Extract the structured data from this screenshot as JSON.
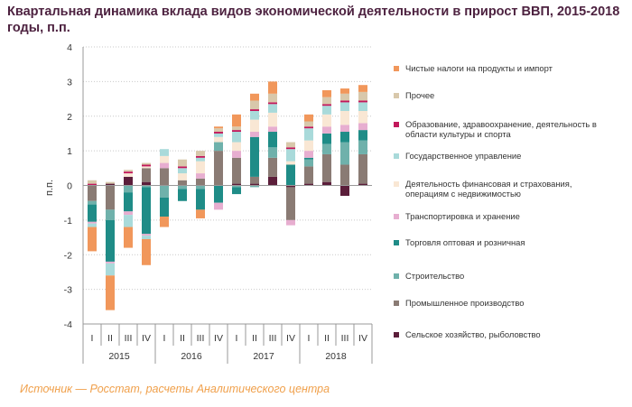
{
  "title": "Квартальная динамика вклада видов экономической деятельности в прирост ВВП, 2015-2018 годы, п.п.",
  "source": "Источник — Росстат, расчеты Аналитического центра",
  "chart_data": {
    "type": "stacked_bar",
    "title": "Квартальная динамика вклада видов экономической деятельности в прирост ВВП, 2015-2018 годы, п.п.",
    "ylabel": "п.п.",
    "ylim": [
      -4,
      4
    ],
    "yticks": [
      "-4",
      "-3",
      "-2",
      "-1",
      "0",
      "1",
      "2",
      "3",
      "4"
    ],
    "categories": [
      "I",
      "II",
      "III",
      "IV",
      "I",
      "II",
      "III",
      "IV",
      "I",
      "II",
      "III",
      "IV",
      "I",
      "II",
      "III",
      "IV"
    ],
    "years": [
      "2015",
      "2016",
      "2017",
      "2018"
    ],
    "series": [
      {
        "name": "Сельское хозяйство, рыболовство",
        "color": "#5b1e3a",
        "values": [
          0.0,
          0.05,
          0.25,
          0.1,
          0.0,
          0.0,
          0.0,
          0.0,
          0.05,
          0.05,
          0.25,
          -0.05,
          0.05,
          0.1,
          -0.3,
          0.05
        ]
      },
      {
        "name": "Промышленное производство",
        "color": "#8a7b74",
        "values": [
          -0.45,
          -0.7,
          0.0,
          0.4,
          0.5,
          0.15,
          0.2,
          1.0,
          0.75,
          0.2,
          0.55,
          -0.95,
          0.5,
          0.8,
          0.6,
          0.85
        ]
      },
      {
        "name": "Строительство",
        "color": "#6fb1ab",
        "values": [
          -0.1,
          -0.3,
          -0.2,
          -0.05,
          -0.35,
          -0.1,
          -0.1,
          0.25,
          -0.05,
          -0.05,
          0.3,
          0.0,
          0.2,
          0.3,
          0.65,
          0.4
        ]
      },
      {
        "name": "Торговля оптовая и розничная",
        "color": "#1f8c87",
        "values": [
          -0.5,
          -1.2,
          -0.55,
          -1.35,
          -0.55,
          -0.35,
          -0.6,
          -0.5,
          -0.2,
          1.15,
          0.45,
          0.6,
          0.05,
          0.3,
          0.3,
          0.3
        ]
      },
      {
        "name": "Транспортировка и хранение",
        "color": "#e7aed0",
        "values": [
          -0.05,
          -0.05,
          -0.1,
          -0.05,
          0.15,
          0.0,
          0.15,
          -0.2,
          0.2,
          0.15,
          0.15,
          -0.15,
          0.2,
          0.2,
          0.2,
          0.2
        ]
      },
      {
        "name": "Деятельность финансовая и страхования, операциям с недвижимостью",
        "color": "#f9e7d4",
        "values": [
          0.0,
          0.0,
          0.1,
          0.05,
          0.2,
          0.2,
          0.35,
          0.15,
          0.25,
          0.35,
          0.4,
          0.1,
          0.3,
          0.35,
          0.4,
          0.35
        ]
      },
      {
        "name": "Государственное управление",
        "color": "#a9dada",
        "values": [
          -0.1,
          -0.35,
          -0.35,
          -0.1,
          0.2,
          0.15,
          0.1,
          0.1,
          0.3,
          0.25,
          0.25,
          0.35,
          0.35,
          0.25,
          0.25,
          0.25
        ]
      },
      {
        "name": "Образование, здравоохранение, деятельность в области культуры и спорта",
        "color": "#c2185b",
        "values": [
          0.05,
          0.0,
          0.05,
          0.05,
          0.0,
          0.05,
          0.05,
          0.05,
          0.05,
          0.05,
          0.05,
          0.05,
          0.05,
          0.05,
          0.05,
          0.05
        ]
      },
      {
        "name": "Прочее",
        "color": "#d8c8ab",
        "values": [
          0.1,
          0.05,
          0.05,
          0.05,
          0.0,
          0.2,
          0.15,
          0.1,
          0.1,
          0.25,
          0.25,
          0.15,
          0.15,
          0.2,
          0.2,
          0.25
        ]
      },
      {
        "name": "Чистые налоги на продукты и импорт",
        "color": "#f1975b",
        "values": [
          -0.7,
          -1.0,
          -0.6,
          -0.75,
          -0.3,
          0.0,
          -0.25,
          0.05,
          0.35,
          0.2,
          0.35,
          0.0,
          0.2,
          0.2,
          0.15,
          0.2
        ]
      }
    ]
  }
}
